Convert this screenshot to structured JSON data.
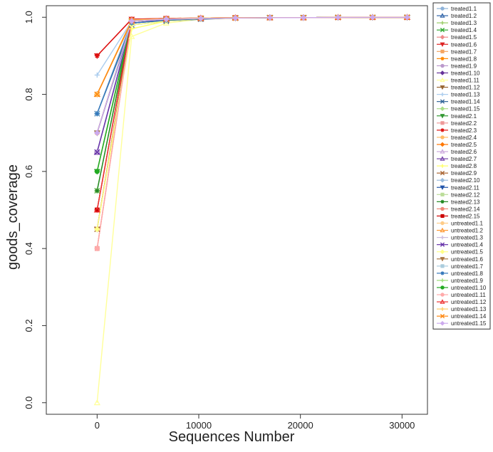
{
  "chart_data": {
    "type": "line",
    "title": "",
    "xlabel": "Sequences Number",
    "ylabel": "goods_coverage",
    "xlim": [
      -5000,
      32500
    ],
    "ylim": [
      -0.03,
      1.03
    ],
    "xticks": [
      0,
      10000,
      20000,
      30000
    ],
    "xtick_labels": [
      "0",
      "10000",
      "20000",
      "30000"
    ],
    "yticks": [
      0.0,
      0.2,
      0.4,
      0.6,
      0.8,
      1.0
    ],
    "ytick_labels": [
      "0.0",
      "0.2",
      "0.4",
      "0.6",
      "0.8",
      "1.0"
    ],
    "grid": false,
    "legend_position": "right",
    "x": [
      0,
      3400,
      6800,
      10200,
      13600,
      17000,
      20300,
      23700,
      27100,
      30500
    ],
    "series": [
      {
        "name": "treated1.1",
        "color": "#8fb3d9",
        "marker": "circle",
        "values": [
          0.75,
          0.99,
          0.995,
          0.997,
          0.998,
          0.999,
          0.999,
          0.9995,
          0.9997,
          0.9998
        ]
      },
      {
        "name": "treated1.2",
        "color": "#3366aa",
        "marker": "triangle",
        "values": [
          0.8,
          0.99,
          0.995,
          0.997,
          0.998,
          0.999,
          0.999,
          0.9995,
          0.9997,
          0.9998
        ]
      },
      {
        "name": "treated1.3",
        "color": "#99cc66",
        "marker": "plus",
        "values": [
          0.6,
          0.985,
          0.992,
          0.996,
          0.998,
          0.999,
          0.999,
          0.9995,
          0.9997,
          0.9998
        ]
      },
      {
        "name": "treated1.4",
        "color": "#33aa33",
        "marker": "x",
        "values": [
          0.55,
          0.99,
          0.994,
          0.997,
          0.998,
          0.999,
          0.999,
          0.9995,
          0.9997,
          0.9998
        ]
      },
      {
        "name": "treated1.5",
        "color": "#ee8888",
        "marker": "diamond",
        "values": [
          0.5,
          0.992,
          0.995,
          0.997,
          0.998,
          0.999,
          0.999,
          0.9995,
          0.9997,
          0.9998
        ]
      },
      {
        "name": "treated1.6",
        "color": "#dd2222",
        "marker": "triangle-down",
        "values": [
          0.9,
          0.995,
          0.997,
          0.998,
          0.999,
          0.999,
          0.999,
          0.9995,
          0.9997,
          0.9998
        ]
      },
      {
        "name": "treated1.7",
        "color": "#f4a460",
        "marker": "square",
        "values": [
          0.8,
          0.993,
          0.996,
          0.998,
          0.999,
          0.999,
          0.999,
          0.9995,
          0.9997,
          0.9998
        ]
      },
      {
        "name": "treated1.8",
        "color": "#ff8800",
        "marker": "star",
        "values": [
          0.8,
          0.99,
          0.995,
          0.997,
          0.998,
          0.999,
          0.999,
          0.9995,
          0.9997,
          0.9998
        ]
      },
      {
        "name": "treated1.9",
        "color": "#bb99cc",
        "marker": "circle",
        "values": [
          0.7,
          0.99,
          0.995,
          0.997,
          0.998,
          0.999,
          0.999,
          0.9995,
          0.9997,
          0.9998
        ]
      },
      {
        "name": "treated1.10",
        "color": "#663399",
        "marker": "diamond",
        "values": [
          0.65,
          0.985,
          0.993,
          0.996,
          0.998,
          0.999,
          0.999,
          0.9995,
          0.9997,
          0.9998
        ]
      },
      {
        "name": "treated1.11",
        "color": "#ffff99",
        "marker": "triangle",
        "values": [
          0.0,
          0.95,
          0.985,
          0.995,
          0.998,
          0.999,
          0.999,
          0.9995,
          0.9997,
          0.9998
        ]
      },
      {
        "name": "treated1.12",
        "color": "#996633",
        "marker": "triangle-down",
        "values": [
          0.45,
          0.99,
          0.995,
          0.997,
          0.998,
          0.999,
          0.999,
          0.9995,
          0.9997,
          0.9998
        ]
      },
      {
        "name": "treated1.13",
        "color": "#aaccee",
        "marker": "plus",
        "values": [
          0.85,
          0.99,
          0.995,
          0.997,
          0.998,
          0.999,
          0.999,
          0.9995,
          0.9997,
          0.9998
        ]
      },
      {
        "name": "treated1.14",
        "color": "#336699",
        "marker": "x",
        "values": [
          0.75,
          0.98,
          0.99,
          0.995,
          0.998,
          0.999,
          0.999,
          0.9995,
          0.9997,
          0.9998
        ]
      },
      {
        "name": "treated1.15",
        "color": "#aadd88",
        "marker": "diamond",
        "values": [
          0.6,
          0.99,
          0.995,
          0.997,
          0.998,
          0.999,
          0.999,
          0.9995,
          0.9997,
          0.9998
        ]
      },
      {
        "name": "treated2.1",
        "color": "#339933",
        "marker": "triangle-down",
        "values": [
          0.6,
          0.99,
          0.995,
          0.997,
          0.998,
          0.999,
          0.999,
          0.9995,
          0.9997,
          0.9998
        ]
      },
      {
        "name": "treated2.2",
        "color": "#ee9999",
        "marker": "square",
        "values": [
          0.4,
          0.99,
          0.995,
          0.997,
          0.998,
          0.999,
          0.999,
          0.9995,
          0.9997,
          0.9998
        ]
      },
      {
        "name": "treated2.3",
        "color": "#dd1111",
        "marker": "star",
        "values": [
          0.9,
          0.995,
          0.997,
          0.998,
          0.999,
          0.999,
          0.999,
          0.9995,
          0.9997,
          0.9998
        ]
      },
      {
        "name": "treated2.4",
        "color": "#ffbb66",
        "marker": "circle",
        "values": [
          0.7,
          0.992,
          0.996,
          0.998,
          0.999,
          0.999,
          0.999,
          0.9995,
          0.9997,
          0.9998
        ]
      },
      {
        "name": "treated2.5",
        "color": "#ff7700",
        "marker": "diamond",
        "values": [
          0.8,
          0.99,
          0.995,
          0.997,
          0.998,
          0.999,
          0.999,
          0.9995,
          0.9997,
          0.9998
        ]
      },
      {
        "name": "treated2.6",
        "color": "#ccaadd",
        "marker": "triangle",
        "values": [
          0.65,
          0.99,
          0.995,
          0.997,
          0.998,
          0.999,
          0.999,
          0.9995,
          0.9997,
          0.9998
        ]
      },
      {
        "name": "treated2.7",
        "color": "#7744aa",
        "marker": "triangle",
        "values": [
          0.65,
          0.985,
          0.993,
          0.996,
          0.998,
          0.999,
          0.999,
          0.9995,
          0.9997,
          0.9998
        ]
      },
      {
        "name": "treated2.8",
        "color": "#ffff66",
        "marker": "plus",
        "values": [
          0.45,
          0.97,
          0.99,
          0.996,
          0.998,
          0.999,
          0.999,
          0.9995,
          0.9997,
          0.9998
        ]
      },
      {
        "name": "treated2.9",
        "color": "#aa6633",
        "marker": "x",
        "values": [
          0.45,
          0.99,
          0.995,
          0.997,
          0.998,
          0.999,
          0.999,
          0.9995,
          0.9997,
          0.9998
        ]
      },
      {
        "name": "treated2.10",
        "color": "#99bbdd",
        "marker": "diamond",
        "values": [
          0.75,
          0.99,
          0.995,
          0.997,
          0.998,
          0.999,
          0.999,
          0.9995,
          0.9997,
          0.9998
        ]
      },
      {
        "name": "treated2.11",
        "color": "#2255aa",
        "marker": "triangle-down",
        "values": [
          0.7,
          0.985,
          0.992,
          0.996,
          0.998,
          0.999,
          0.999,
          0.9995,
          0.9997,
          0.9998
        ]
      },
      {
        "name": "treated2.12",
        "color": "#bbdd99",
        "marker": "square",
        "values": [
          0.55,
          0.99,
          0.995,
          0.997,
          0.998,
          0.999,
          0.999,
          0.9995,
          0.9997,
          0.9998
        ]
      },
      {
        "name": "treated2.13",
        "color": "#228822",
        "marker": "star",
        "values": [
          0.55,
          0.99,
          0.995,
          0.997,
          0.998,
          0.999,
          0.999,
          0.9995,
          0.9997,
          0.9998
        ]
      },
      {
        "name": "treated2.14",
        "color": "#ee8877",
        "marker": "circle",
        "values": [
          0.4,
          0.993,
          0.996,
          0.998,
          0.999,
          0.999,
          0.999,
          0.9995,
          0.9997,
          0.9998
        ]
      },
      {
        "name": "treated2.15",
        "color": "#cc0000",
        "marker": "square",
        "values": [
          0.5,
          0.993,
          0.996,
          0.998,
          0.999,
          0.999,
          0.999,
          0.9995,
          0.9997,
          0.9998
        ]
      },
      {
        "name": "untreated1.1",
        "color": "#ffcc88",
        "marker": "circle",
        "values": [
          0.8,
          0.993,
          0.996,
          0.998,
          0.999,
          0.999,
          0.999,
          0.9995,
          0.9997,
          0.9998
        ]
      },
      {
        "name": "untreated1.2",
        "color": "#ff9933",
        "marker": "triangle",
        "values": [
          0.8,
          0.99,
          0.995,
          0.997,
          0.998,
          0.999,
          0.999,
          0.9995,
          0.9997,
          0.9998
        ]
      },
      {
        "name": "untreated1.3",
        "color": "#ccbbdd",
        "marker": "plus",
        "values": [
          0.65,
          0.99,
          0.995,
          0.997,
          0.998,
          0.999,
          0.999,
          0.9995,
          0.9997,
          0.9998
        ]
      },
      {
        "name": "untreated1.4",
        "color": "#6633aa",
        "marker": "x",
        "values": [
          0.65,
          0.985,
          0.993,
          0.996,
          0.998,
          0.999,
          0.999,
          0.9995,
          0.9997,
          0.9998
        ]
      },
      {
        "name": "untreated1.5",
        "color": "#ffff88",
        "marker": "diamond",
        "values": [
          0.45,
          0.98,
          0.99,
          0.996,
          0.998,
          0.999,
          0.999,
          0.9995,
          0.9997,
          0.9998
        ]
      },
      {
        "name": "untreated1.6",
        "color": "#aa7744",
        "marker": "triangle-down",
        "values": [
          0.7,
          0.99,
          0.995,
          0.997,
          0.998,
          0.999,
          0.999,
          0.9995,
          0.9997,
          0.9998
        ]
      },
      {
        "name": "untreated1.7",
        "color": "#aaccdd",
        "marker": "square",
        "values": [
          0.75,
          0.99,
          0.995,
          0.997,
          0.998,
          0.999,
          0.999,
          0.9995,
          0.9997,
          0.9998
        ]
      },
      {
        "name": "untreated1.8",
        "color": "#3377bb",
        "marker": "star",
        "values": [
          0.75,
          0.985,
          0.992,
          0.996,
          0.998,
          0.999,
          0.999,
          0.9995,
          0.9997,
          0.9998
        ]
      },
      {
        "name": "untreated1.9",
        "color": "#99dd77",
        "marker": "plus",
        "values": [
          0.6,
          0.99,
          0.995,
          0.997,
          0.998,
          0.999,
          0.999,
          0.9995,
          0.9997,
          0.9998
        ]
      },
      {
        "name": "untreated1.10",
        "color": "#22aa22",
        "marker": "circle",
        "values": [
          0.6,
          0.99,
          0.995,
          0.997,
          0.998,
          0.999,
          0.999,
          0.9995,
          0.9997,
          0.9998
        ]
      },
      {
        "name": "untreated1.11",
        "color": "#ffaaaa",
        "marker": "circle",
        "values": [
          0.4,
          0.99,
          0.995,
          0.997,
          0.998,
          0.999,
          0.999,
          0.9995,
          0.9997,
          0.9998
        ]
      },
      {
        "name": "untreated1.12",
        "color": "#ee3333",
        "marker": "triangle",
        "values": [
          0.5,
          0.993,
          0.996,
          0.998,
          0.999,
          0.999,
          0.999,
          0.9995,
          0.9997,
          0.9998
        ]
      },
      {
        "name": "untreated1.13",
        "color": "#ffcc66",
        "marker": "plus",
        "values": [
          0.8,
          0.993,
          0.996,
          0.998,
          0.999,
          0.999,
          0.999,
          0.9995,
          0.9997,
          0.9998
        ]
      },
      {
        "name": "untreated1.14",
        "color": "#ff8811",
        "marker": "x",
        "values": [
          0.8,
          0.99,
          0.995,
          0.997,
          0.998,
          0.999,
          0.999,
          0.9995,
          0.9997,
          0.9998
        ]
      },
      {
        "name": "untreated1.15",
        "color": "#ccaaee",
        "marker": "diamond",
        "values": [
          0.7,
          0.99,
          0.995,
          0.997,
          0.998,
          0.999,
          0.999,
          0.9995,
          0.9997,
          0.9998
        ]
      }
    ]
  }
}
